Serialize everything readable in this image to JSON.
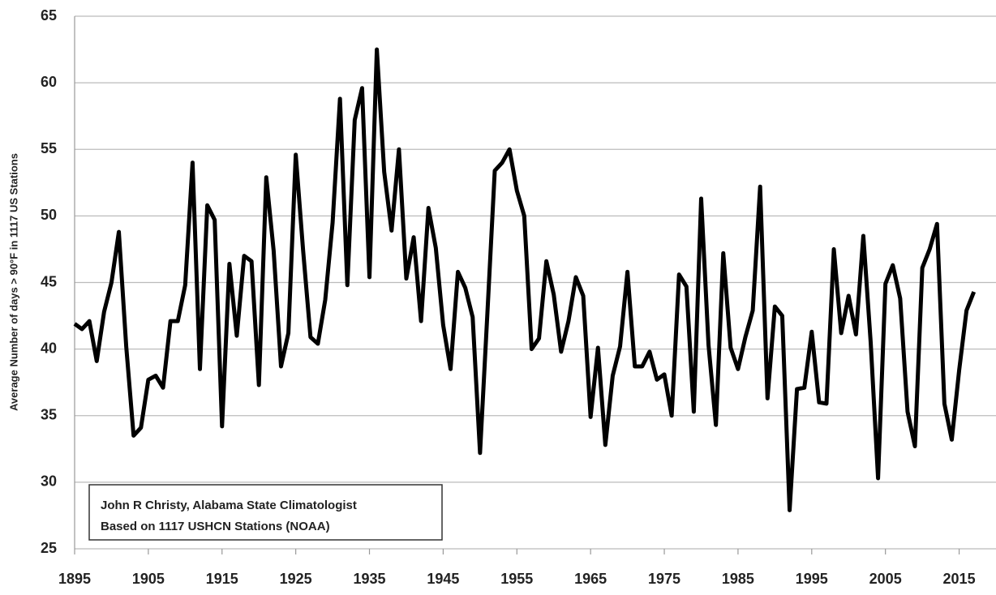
{
  "chart_data": {
    "type": "line",
    "y_label": "Average Number of days > 90°F in 1117 US Stations",
    "annotation": [
      "John R Christy, Alabama State Climatologist",
      "Based on 1117 USHCN Stations (NOAA)"
    ],
    "x": [
      1895,
      1896,
      1897,
      1898,
      1899,
      1900,
      1901,
      1902,
      1903,
      1904,
      1905,
      1906,
      1907,
      1908,
      1909,
      1910,
      1911,
      1912,
      1913,
      1914,
      1915,
      1916,
      1917,
      1918,
      1919,
      1920,
      1921,
      1922,
      1923,
      1924,
      1925,
      1926,
      1927,
      1928,
      1929,
      1930,
      1931,
      1932,
      1933,
      1934,
      1935,
      1936,
      1937,
      1938,
      1939,
      1940,
      1941,
      1942,
      1943,
      1944,
      1945,
      1946,
      1947,
      1948,
      1949,
      1950,
      1951,
      1952,
      1953,
      1954,
      1955,
      1956,
      1957,
      1958,
      1959,
      1960,
      1961,
      1962,
      1963,
      1964,
      1965,
      1966,
      1967,
      1968,
      1969,
      1970,
      1971,
      1972,
      1973,
      1974,
      1975,
      1976,
      1977,
      1978,
      1979,
      1980,
      1981,
      1982,
      1983,
      1984,
      1985,
      1986,
      1987,
      1988,
      1989,
      1990,
      1991,
      1992,
      1993,
      1994,
      1995,
      1996,
      1997,
      1998,
      1999,
      2000,
      2001,
      2002,
      2003,
      2004,
      2005,
      2006,
      2007,
      2008,
      2009,
      2010,
      2011,
      2012,
      2013,
      2014,
      2015,
      2016,
      2017
    ],
    "series": [
      {
        "color": "#000000",
        "values": [
          41.9,
          41.5,
          42.1,
          39.1,
          42.8,
          45,
          48.8,
          40.2,
          33.5,
          34.1,
          37.7,
          38,
          37.1,
          42.1,
          42.1,
          44.8,
          54,
          38.5,
          50.8,
          49.7,
          34.2,
          46.4,
          41,
          47,
          46.6,
          37.3,
          52.9,
          47.4,
          38.7,
          41.2,
          54.6,
          47.4,
          40.9,
          40.4,
          43.7,
          49.5,
          58.8,
          44.8,
          57.2,
          59.6,
          45.4,
          62.5,
          53.3,
          48.9,
          55,
          45.3,
          48.4,
          42.1,
          50.6,
          47.6,
          41.8,
          38.5,
          45.8,
          44.6,
          42.4,
          32.2,
          42.7,
          53.4,
          54,
          55,
          51.9,
          50,
          40,
          40.8,
          46.6,
          44.1,
          39.8,
          42.1,
          45.4,
          44,
          34.9,
          40.1,
          32.8,
          38,
          40.2,
          45.8,
          38.7,
          38.7,
          39.8,
          37.7,
          38.1,
          35,
          45.6,
          44.7,
          35.3,
          51.3,
          40.3,
          34.3,
          47.2,
          40.1,
          38.5,
          40.9,
          42.9,
          52.2,
          36.3,
          43.2,
          42.5,
          27.9,
          37,
          37.1,
          41.3,
          36,
          35.9,
          47.5,
          41.2,
          44,
          41.1,
          48.5,
          40.5,
          30.3,
          44.9,
          46.3,
          43.8,
          35.3,
          32.7,
          46.1,
          47.5,
          49.4,
          35.9,
          33.2,
          38.4,
          42.9,
          44.3
        ]
      }
    ],
    "xlim": [
      1895,
      2020
    ],
    "xticks": [
      1895,
      1905,
      1915,
      1925,
      1935,
      1945,
      1955,
      1965,
      1975,
      1985,
      1995,
      2005,
      2015
    ],
    "ylim": [
      25,
      65
    ],
    "yticks": [
      25,
      30,
      35,
      40,
      45,
      50,
      55,
      60,
      65
    ],
    "grid": true
  }
}
